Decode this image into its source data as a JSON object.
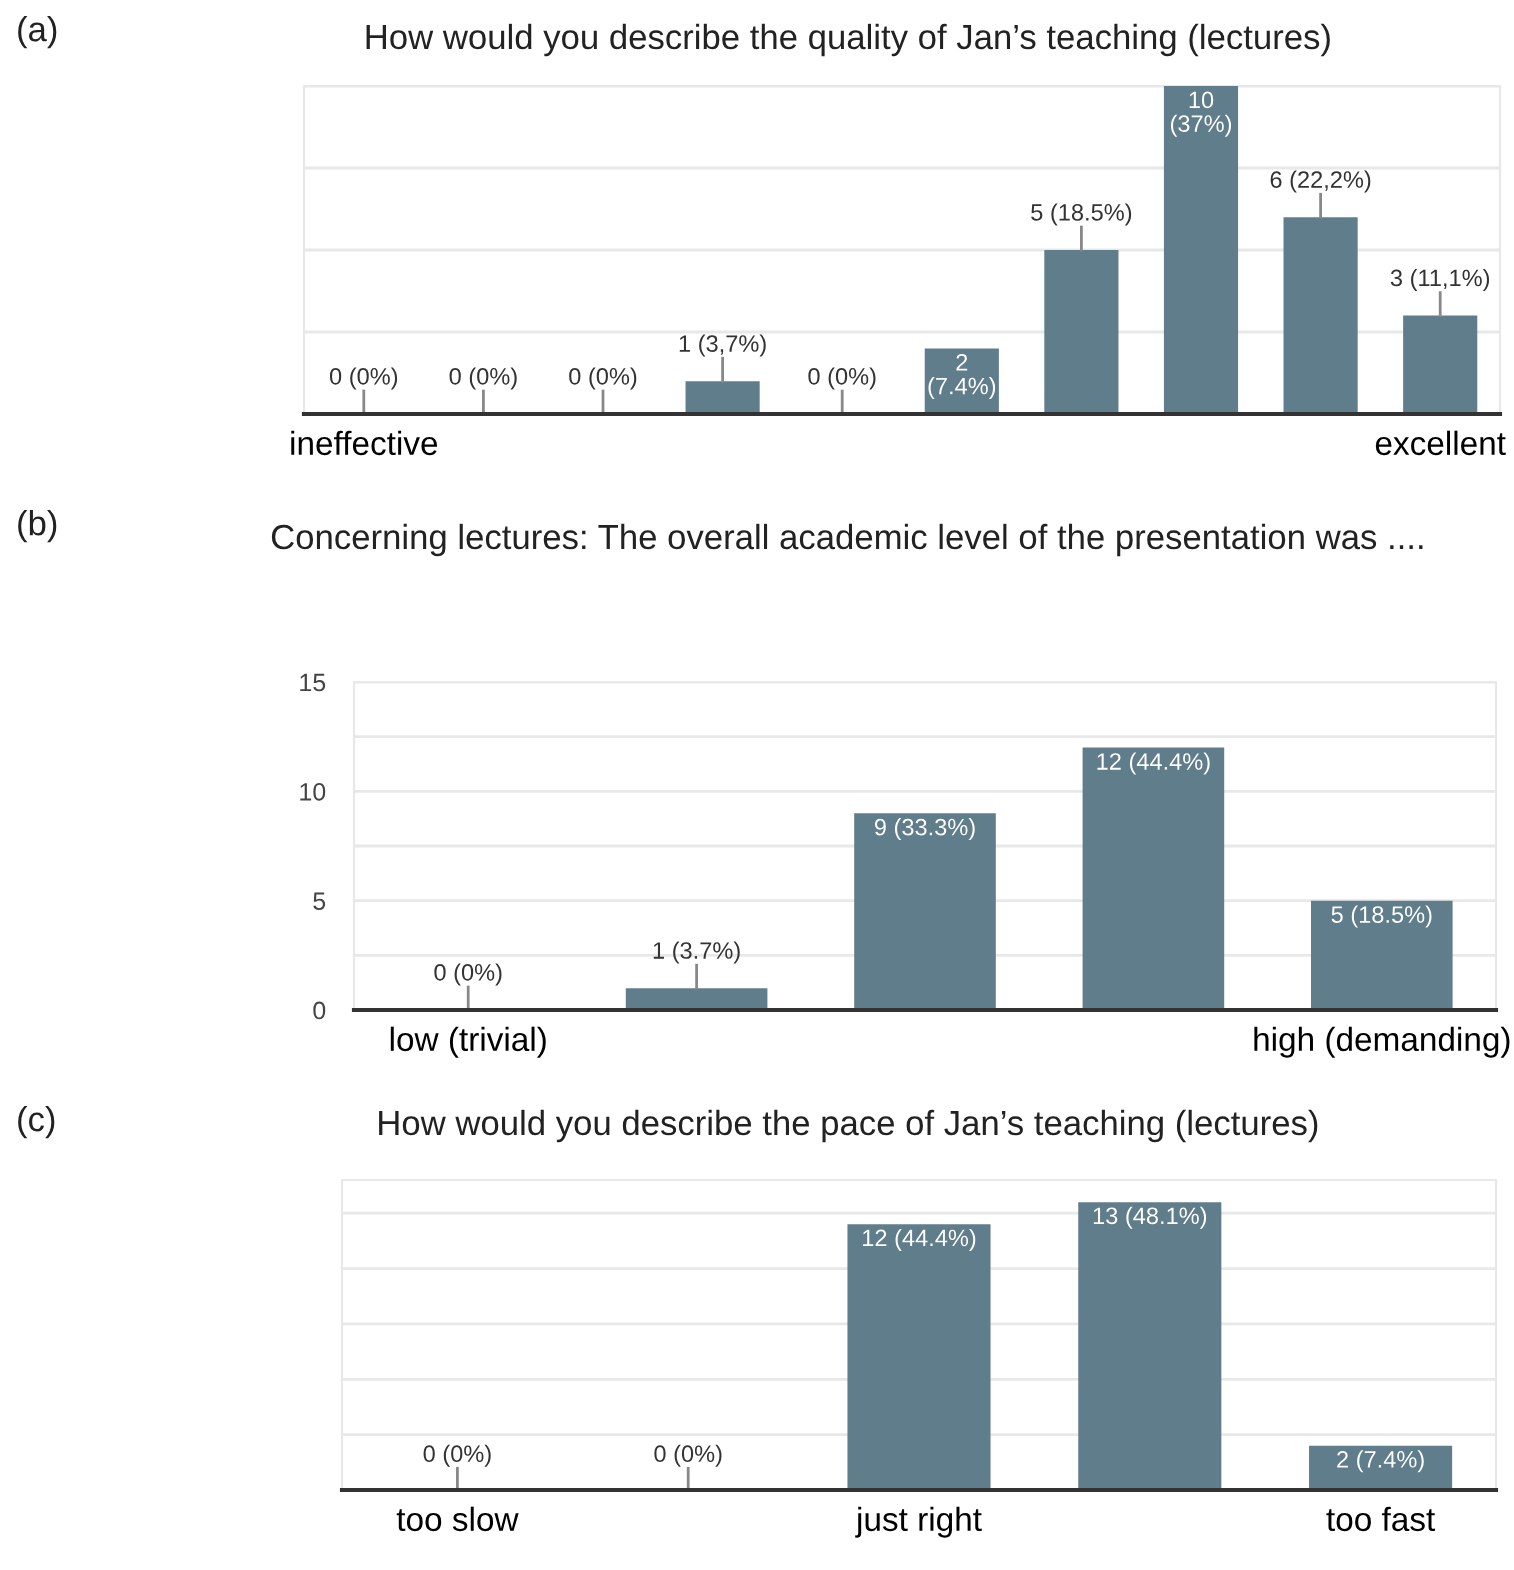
{
  "chart_data": [
    {
      "type": "bar",
      "title": "How would you describe the quality of Jan’s teaching (lectures)",
      "annotations": [
        "(a)"
      ],
      "categories": [
        "ineffective",
        null,
        null,
        null,
        null,
        null,
        null,
        null,
        null,
        "excellent"
      ],
      "values": [
        0,
        0,
        0,
        1,
        0,
        2,
        5,
        10,
        6,
        3
      ],
      "color": "#607d8b",
      "value_labels": [
        "0 (0%)",
        "0 (0%)",
        "0 (0%)",
        "1 (3,7%)",
        "0 (0%)",
        "2\n(7.4%)",
        "5 (18.5%)",
        "10\n(37%)",
        "6 (22,2%)",
        "3 (11,1%)"
      ],
      "ylim": [
        0,
        10
      ],
      "yticks": [
        {
          "value": 0,
          "label": null
        },
        {
          "value": 2.5,
          "label": null
        },
        {
          "value": 5,
          "label": null
        },
        {
          "value": 7.5,
          "label": null
        },
        {
          "value": 10,
          "label": null
        }
      ],
      "grid": "y",
      "tick_labels": "x"
    },
    {
      "type": "bar",
      "title": "Concerning lectures: The overall academic level of the presentation was ....",
      "annotations": [
        "(b)"
      ],
      "categories": [
        "low (trivial)",
        null,
        null,
        null,
        "high (demanding)"
      ],
      "values": [
        0,
        1,
        9,
        12,
        5
      ],
      "color": "#607d8b",
      "value_labels": [
        "0 (0%)",
        "1 (3.7%)",
        "9 (33.3%)",
        "12 (44.4%)",
        "5 (18.5%)"
      ],
      "ylim": [
        0,
        15
      ],
      "yticks": [
        0,
        {
          "value": 2.5,
          "label": null
        },
        5,
        {
          "value": 7.5,
          "label": null
        },
        10,
        {
          "value": 12.5,
          "label": null
        },
        15
      ],
      "grid": "y"
    },
    {
      "type": "bar",
      "title": "How would you describe the pace of Jan’s teaching (lectures)",
      "annotations": [
        "(c)"
      ],
      "categories": [
        "too slow",
        null,
        "just right",
        null,
        "too fast"
      ],
      "values": [
        0,
        0,
        12,
        13,
        2
      ],
      "color": "#607d8b",
      "value_labels": [
        "0 (0%)",
        "0 (0%)",
        "12 (44.4%)",
        "13 (48.1%)",
        "2 (7.4%)"
      ],
      "ylim": [
        0,
        14
      ],
      "yticks": [
        {
          "value": 0,
          "label": null
        },
        {
          "value": 2.5,
          "label": null
        },
        {
          "value": 5,
          "label": null
        },
        {
          "value": 7.5,
          "label": null
        },
        {
          "value": 10,
          "label": null
        },
        {
          "value": 12.5,
          "label": null
        }
      ],
      "grid": "y",
      "tick_labels": "x"
    }
  ]
}
